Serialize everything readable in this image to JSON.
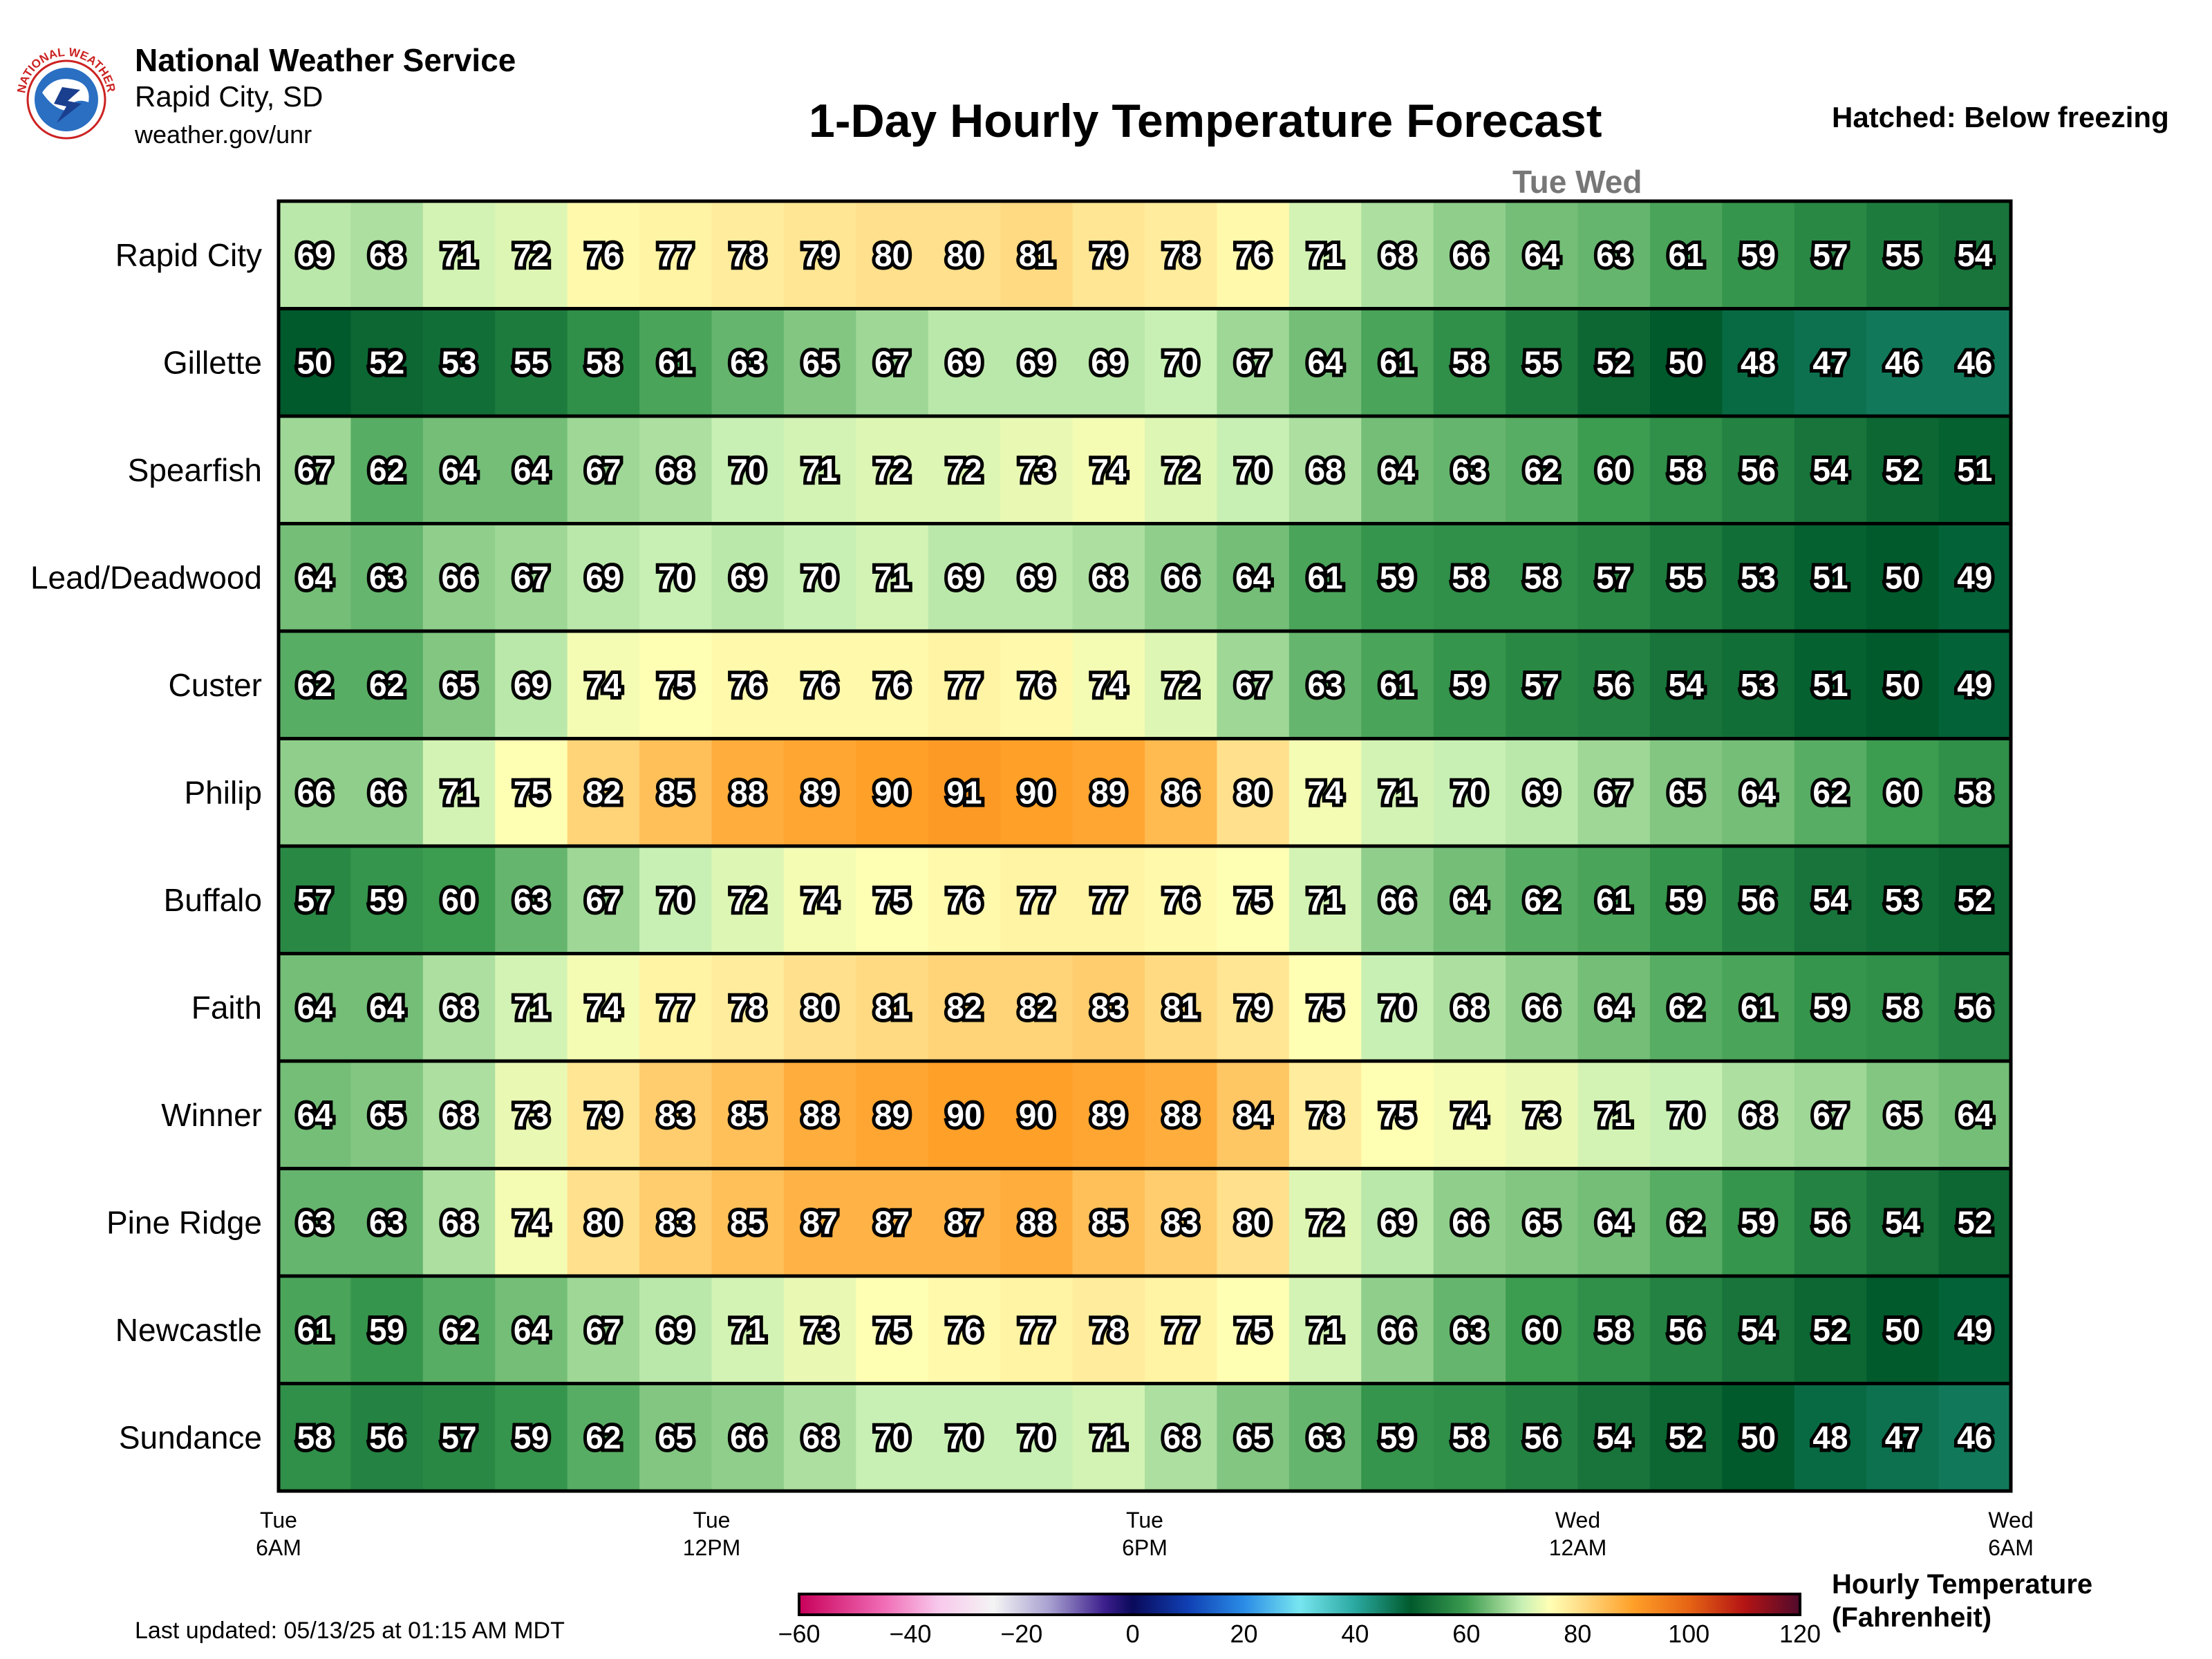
{
  "header": {
    "org": "National Weather Service",
    "office": "Rapid City, SD",
    "url": "weather.gov/unr",
    "logo_text": "NATIONAL WEATHER SERVICE"
  },
  "hatch_note": "Hatched: Below freezing",
  "day_marker": "Tue Wed",
  "updated": "Last updated: 05/13/25 at 01:15 AM MDT",
  "colorbar": {
    "title_line1": "Hourly Temperature",
    "title_line2": "(Fahrenheit)",
    "ticks": [
      "−60",
      "−40",
      "−20",
      "0",
      "20",
      "40",
      "60",
      "80",
      "100",
      "120"
    ],
    "range": [
      -60,
      120
    ],
    "stops": [
      [
        -60,
        "#c8005a"
      ],
      [
        -45,
        "#f06ab4"
      ],
      [
        -35,
        "#f8c8ec"
      ],
      [
        -25,
        "#f4f4f4"
      ],
      [
        -15,
        "#a8a0d0"
      ],
      [
        -5,
        "#3c1e8c"
      ],
      [
        0,
        "#0a0a5a"
      ],
      [
        10,
        "#1040b4"
      ],
      [
        20,
        "#2a8ce6"
      ],
      [
        30,
        "#78e6f0"
      ],
      [
        40,
        "#2aa8a0"
      ],
      [
        50,
        "#005a2c"
      ],
      [
        60,
        "#3c9c50"
      ],
      [
        70,
        "#c8f0b4"
      ],
      [
        75,
        "#ffffb4"
      ],
      [
        80,
        "#ffe08c"
      ],
      [
        90,
        "#ffa028"
      ],
      [
        100,
        "#e66414"
      ],
      [
        110,
        "#b41414"
      ],
      [
        120,
        "#500a2c"
      ]
    ]
  },
  "chart_data": {
    "type": "heatmap",
    "title": "1-Day Hourly Temperature Forecast",
    "x_tick_labels": [
      {
        "day": "Tue",
        "time": "6AM"
      },
      {
        "day": "Tue",
        "time": "12PM"
      },
      {
        "day": "Tue",
        "time": "6PM"
      },
      {
        "day": "Wed",
        "time": "12AM"
      },
      {
        "day": "Wed",
        "time": "6AM"
      }
    ],
    "hours": [
      "Tue 6AM",
      "Tue 7AM",
      "Tue 8AM",
      "Tue 9AM",
      "Tue 10AM",
      "Tue 11AM",
      "Tue 12PM",
      "Tue 1PM",
      "Tue 2PM",
      "Tue 3PM",
      "Tue 4PM",
      "Tue 5PM",
      "Tue 6PM",
      "Tue 7PM",
      "Tue 8PM",
      "Tue 9PM",
      "Tue 10PM",
      "Tue 11PM",
      "Wed 12AM",
      "Wed 1AM",
      "Wed 2AM",
      "Wed 3AM",
      "Wed 4AM",
      "Wed 5AM"
    ],
    "rows": [
      {
        "name": "Rapid City",
        "values": [
          69,
          68,
          71,
          72,
          76,
          77,
          78,
          79,
          80,
          80,
          81,
          79,
          78,
          76,
          71,
          68,
          66,
          64,
          63,
          61,
          59,
          57,
          55,
          54
        ]
      },
      {
        "name": "Gillette",
        "values": [
          50,
          52,
          53,
          55,
          58,
          61,
          63,
          65,
          67,
          69,
          69,
          69,
          70,
          67,
          64,
          61,
          58,
          55,
          52,
          50,
          48,
          47,
          46,
          46
        ]
      },
      {
        "name": "Spearfish",
        "values": [
          67,
          62,
          64,
          64,
          67,
          68,
          70,
          71,
          72,
          72,
          73,
          74,
          72,
          70,
          68,
          64,
          63,
          62,
          60,
          58,
          56,
          54,
          52,
          51
        ]
      },
      {
        "name": "Lead/Deadwood",
        "values": [
          64,
          63,
          66,
          67,
          69,
          70,
          69,
          70,
          71,
          69,
          69,
          68,
          66,
          64,
          61,
          59,
          58,
          58,
          57,
          55,
          53,
          51,
          50,
          49
        ]
      },
      {
        "name": "Custer",
        "values": [
          62,
          62,
          65,
          69,
          74,
          75,
          76,
          76,
          76,
          77,
          76,
          74,
          72,
          67,
          63,
          61,
          59,
          57,
          56,
          54,
          53,
          51,
          50,
          49
        ]
      },
      {
        "name": "Philip",
        "values": [
          66,
          66,
          71,
          75,
          82,
          85,
          88,
          89,
          90,
          91,
          90,
          89,
          86,
          80,
          74,
          71,
          70,
          69,
          67,
          65,
          64,
          62,
          60,
          58
        ]
      },
      {
        "name": "Buffalo",
        "values": [
          57,
          59,
          60,
          63,
          67,
          70,
          72,
          74,
          75,
          76,
          77,
          77,
          76,
          75,
          71,
          66,
          64,
          62,
          61,
          59,
          56,
          54,
          53,
          52
        ]
      },
      {
        "name": "Faith",
        "values": [
          64,
          64,
          68,
          71,
          74,
          77,
          78,
          80,
          81,
          82,
          82,
          83,
          81,
          79,
          75,
          70,
          68,
          66,
          64,
          62,
          61,
          59,
          58,
          56
        ]
      },
      {
        "name": "Winner",
        "values": [
          64,
          65,
          68,
          73,
          79,
          83,
          85,
          88,
          89,
          90,
          90,
          89,
          88,
          84,
          78,
          75,
          74,
          73,
          71,
          70,
          68,
          67,
          65,
          64
        ]
      },
      {
        "name": "Pine Ridge",
        "values": [
          63,
          63,
          68,
          74,
          80,
          83,
          85,
          87,
          87,
          87,
          88,
          85,
          83,
          80,
          72,
          69,
          66,
          65,
          64,
          62,
          59,
          56,
          54,
          52
        ]
      },
      {
        "name": "Newcastle",
        "values": [
          61,
          59,
          62,
          64,
          67,
          69,
          71,
          73,
          75,
          76,
          77,
          78,
          77,
          75,
          71,
          66,
          63,
          60,
          58,
          56,
          54,
          52,
          50,
          49
        ]
      },
      {
        "name": "Sundance",
        "values": [
          58,
          56,
          57,
          59,
          62,
          65,
          66,
          68,
          70,
          70,
          70,
          71,
          68,
          65,
          63,
          59,
          58,
          56,
          54,
          52,
          50,
          48,
          47,
          46
        ]
      }
    ]
  }
}
